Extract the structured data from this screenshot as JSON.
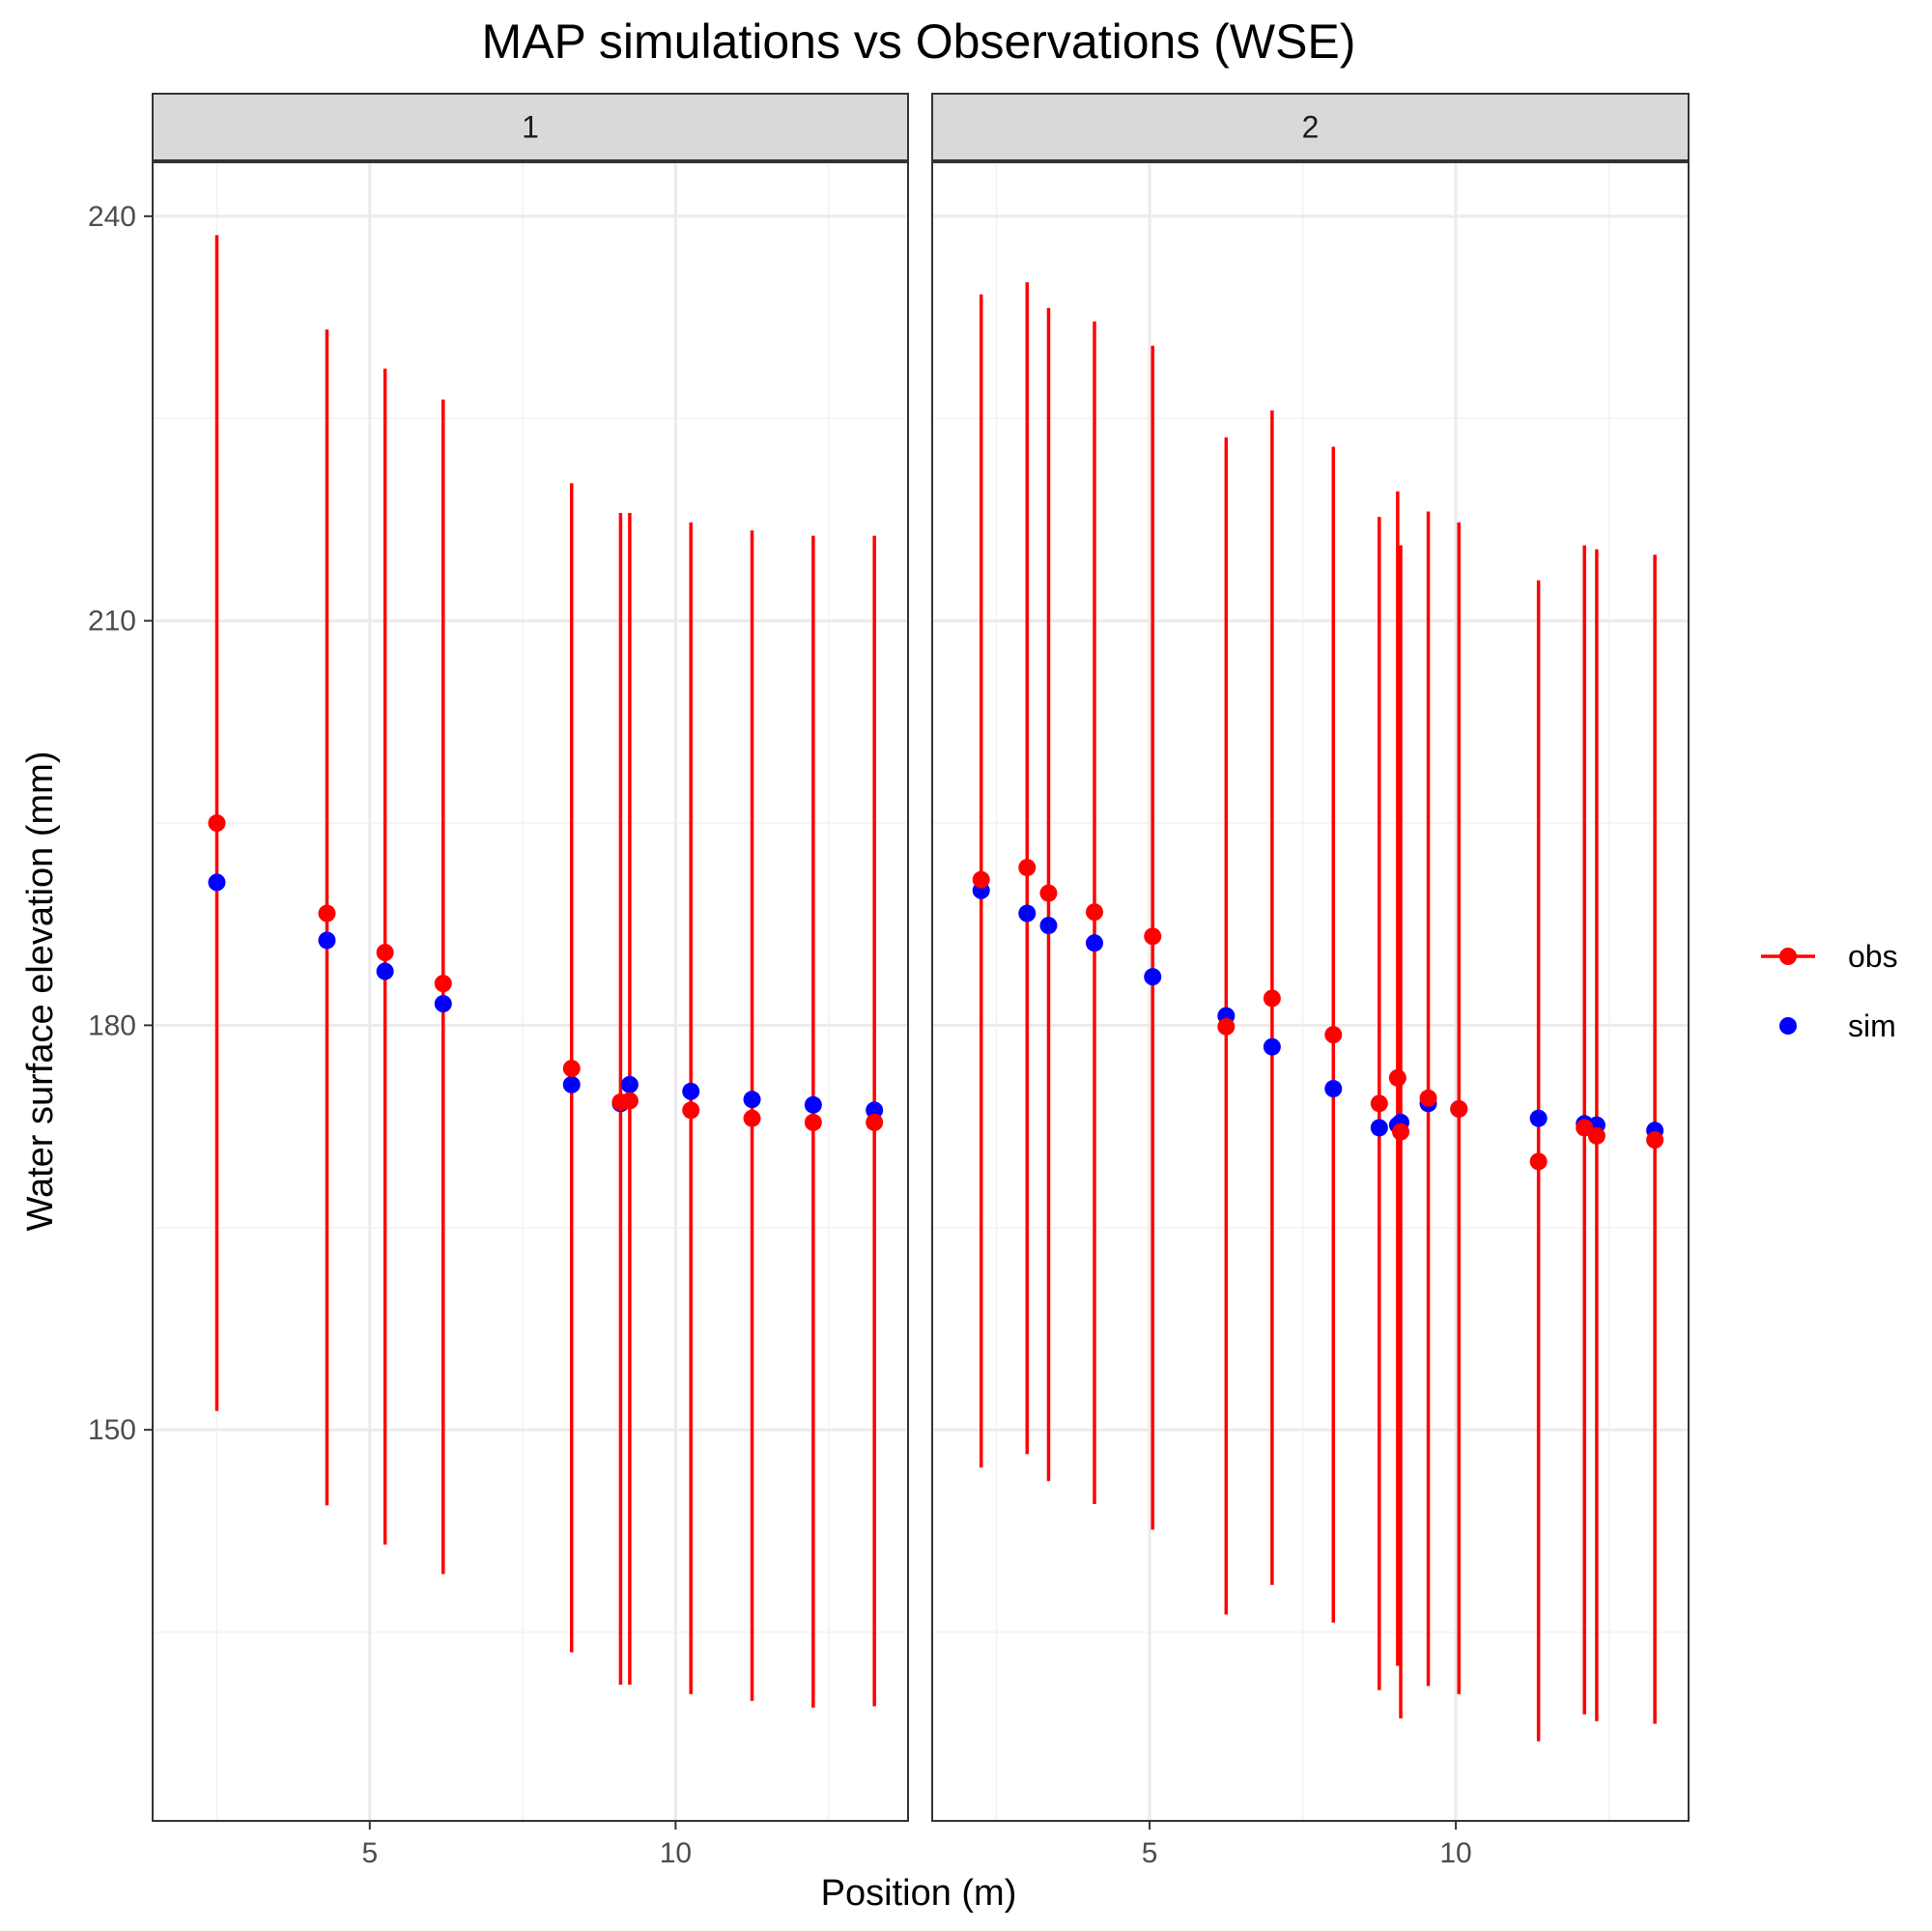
{
  "chart_data": {
    "type": "scatter",
    "title": "MAP simulations vs Observations (WSE)",
    "xlabel": "Position (m)",
    "ylabel": "Water surface elevation (mm)",
    "xlim": [
      1.45,
      13.8
    ],
    "ylim": [
      121,
      244
    ],
    "x_ticks": [
      5,
      10
    ],
    "y_ticks": [
      150,
      180,
      210,
      240
    ],
    "grid": true,
    "legend_position": "right",
    "legend": [
      {
        "name": "obs",
        "color": "#ff0000",
        "marker": "point-line"
      },
      {
        "name": "sim",
        "color": "#0000ff",
        "marker": "point"
      }
    ],
    "panels": [
      {
        "label": "1",
        "obs": [
          {
            "x": 2.5,
            "y": 195.0,
            "lo": 151.4,
            "hi": 238.6
          },
          {
            "x": 4.3,
            "y": 188.3,
            "lo": 144.4,
            "hi": 231.6
          },
          {
            "x": 5.25,
            "y": 185.4,
            "lo": 141.5,
            "hi": 228.7
          },
          {
            "x": 6.2,
            "y": 183.1,
            "lo": 139.3,
            "hi": 226.4
          },
          {
            "x": 8.3,
            "y": 176.8,
            "lo": 133.5,
            "hi": 220.2
          },
          {
            "x": 9.1,
            "y": 174.3,
            "lo": 131.1,
            "hi": 218.0
          },
          {
            "x": 9.25,
            "y": 174.4,
            "lo": 131.1,
            "hi": 218.0
          },
          {
            "x": 10.25,
            "y": 173.7,
            "lo": 130.4,
            "hi": 217.3
          },
          {
            "x": 11.25,
            "y": 173.1,
            "lo": 129.9,
            "hi": 216.7
          },
          {
            "x": 12.25,
            "y": 172.8,
            "lo": 129.4,
            "hi": 216.3
          },
          {
            "x": 13.25,
            "y": 172.8,
            "lo": 129.5,
            "hi": 216.3
          }
        ],
        "sim": [
          {
            "x": 2.5,
            "y": 190.6
          },
          {
            "x": 4.3,
            "y": 186.3
          },
          {
            "x": 5.25,
            "y": 184.0
          },
          {
            "x": 6.2,
            "y": 181.6
          },
          {
            "x": 8.3,
            "y": 175.6
          },
          {
            "x": 9.1,
            "y": 174.2
          },
          {
            "x": 9.25,
            "y": 175.6
          },
          {
            "x": 10.25,
            "y": 175.1
          },
          {
            "x": 11.25,
            "y": 174.5
          },
          {
            "x": 12.25,
            "y": 174.1
          },
          {
            "x": 13.25,
            "y": 173.7
          }
        ]
      },
      {
        "label": "2",
        "obs": [
          {
            "x": 2.25,
            "y": 190.8,
            "lo": 147.2,
            "hi": 234.2
          },
          {
            "x": 3.0,
            "y": 191.7,
            "lo": 148.2,
            "hi": 235.1
          },
          {
            "x": 3.35,
            "y": 189.8,
            "lo": 146.2,
            "hi": 233.2
          },
          {
            "x": 4.1,
            "y": 188.4,
            "lo": 144.5,
            "hi": 232.2
          },
          {
            "x": 5.05,
            "y": 186.6,
            "lo": 142.6,
            "hi": 230.4
          },
          {
            "x": 6.25,
            "y": 179.9,
            "lo": 136.3,
            "hi": 223.6
          },
          {
            "x": 7.0,
            "y": 182.0,
            "lo": 138.5,
            "hi": 225.6
          },
          {
            "x": 8.0,
            "y": 179.3,
            "lo": 135.7,
            "hi": 222.9
          },
          {
            "x": 8.75,
            "y": 174.2,
            "lo": 130.7,
            "hi": 217.7
          },
          {
            "x": 9.05,
            "y": 176.1,
            "lo": 132.5,
            "hi": 219.6
          },
          {
            "x": 9.1,
            "y": 172.1,
            "lo": 128.6,
            "hi": 215.6
          },
          {
            "x": 9.55,
            "y": 174.6,
            "lo": 131.0,
            "hi": 218.1
          },
          {
            "x": 10.05,
            "y": 173.8,
            "lo": 130.4,
            "hi": 217.3
          },
          {
            "x": 11.35,
            "y": 169.9,
            "lo": 126.9,
            "hi": 213.0
          },
          {
            "x": 12.1,
            "y": 172.4,
            "lo": 128.9,
            "hi": 215.6
          },
          {
            "x": 12.3,
            "y": 171.8,
            "lo": 128.4,
            "hi": 215.3
          },
          {
            "x": 13.25,
            "y": 171.5,
            "lo": 128.2,
            "hi": 214.9
          }
        ],
        "sim": [
          {
            "x": 2.25,
            "y": 190.0
          },
          {
            "x": 3.0,
            "y": 188.3
          },
          {
            "x": 3.35,
            "y": 187.4
          },
          {
            "x": 4.1,
            "y": 186.1
          },
          {
            "x": 5.05,
            "y": 183.6
          },
          {
            "x": 6.25,
            "y": 180.7
          },
          {
            "x": 7.0,
            "y": 178.4
          },
          {
            "x": 8.0,
            "y": 175.3
          },
          {
            "x": 8.75,
            "y": 172.4
          },
          {
            "x": 9.05,
            "y": 172.6
          },
          {
            "x": 9.1,
            "y": 172.8
          },
          {
            "x": 9.55,
            "y": 174.2
          },
          {
            "x": 10.05,
            "y": 173.8
          },
          {
            "x": 11.35,
            "y": 173.1
          },
          {
            "x": 12.1,
            "y": 172.7
          },
          {
            "x": 12.3,
            "y": 172.6
          },
          {
            "x": 13.25,
            "y": 172.2
          }
        ]
      }
    ],
    "colors": {
      "obs": "#ff0000",
      "sim": "#0000ff",
      "grid_major": "#ebebeb",
      "grid_minor": "#f2f2f2",
      "strip_fill": "#d9d9d9",
      "panel_border": "#333333"
    }
  }
}
